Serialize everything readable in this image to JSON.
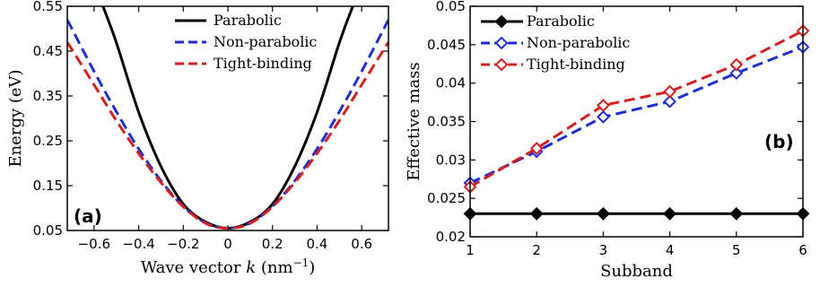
{
  "colors": {
    "parabolic": "#000000",
    "non_parabolic": "#1f2fcf",
    "tight_binding": "#d42020"
  },
  "chart_data": [
    {
      "type": "line",
      "panel_label": "(a)",
      "xlabel": "Wave vector",
      "xlabel_var": "k",
      "xlabel_unit_base": "(nm",
      "xlabel_unit_exp": "−1",
      "xlabel_unit_close": ")",
      "ylabel": "Energy (eV)",
      "xlim": [
        -0.72,
        0.72
      ],
      "ylim": [
        0.05,
        0.55
      ],
      "xticks": [
        -0.6,
        -0.4,
        -0.2,
        0,
        0.2,
        0.4,
        0.6
      ],
      "xtick_labels": [
        "−0.6",
        "−0.4",
        "−0.2",
        "0",
        "0.2",
        "0.4",
        "0.6"
      ],
      "yticks": [
        0.05,
        0.15,
        0.25,
        0.35,
        0.45,
        0.55
      ],
      "ytick_labels": [
        "0.05",
        "0.15",
        "0.25",
        "0.35",
        "0.45",
        "0.55"
      ],
      "legend": [
        "Parabolic",
        "Non-parabolic",
        "Tight-binding"
      ],
      "series": [
        {
          "name": "Parabolic",
          "x": [
            -0.56,
            -0.5,
            -0.4,
            -0.3,
            -0.2,
            -0.1,
            0,
            0.1,
            0.2,
            0.3,
            0.4,
            0.5,
            0.56
          ],
          "y": [
            0.55,
            0.469,
            0.314,
            0.193,
            0.109,
            0.069,
            0.055,
            0.069,
            0.109,
            0.193,
            0.314,
            0.469,
            0.55
          ]
        },
        {
          "name": "Non-parabolic",
          "x": [
            -0.72,
            -0.6,
            -0.5,
            -0.4,
            -0.3,
            -0.2,
            -0.1,
            0,
            0.1,
            0.2,
            0.3,
            0.4,
            0.5,
            0.6,
            0.72
          ],
          "y": [
            0.52,
            0.405,
            0.315,
            0.232,
            0.161,
            0.104,
            0.067,
            0.055,
            0.067,
            0.104,
            0.161,
            0.232,
            0.315,
            0.405,
            0.52
          ]
        },
        {
          "name": "Tight-binding",
          "x": [
            -0.72,
            -0.6,
            -0.5,
            -0.4,
            -0.3,
            -0.2,
            -0.1,
            0,
            0.1,
            0.2,
            0.3,
            0.4,
            0.5,
            0.6,
            0.72
          ],
          "y": [
            0.47,
            0.375,
            0.295,
            0.222,
            0.157,
            0.103,
            0.066,
            0.055,
            0.066,
            0.103,
            0.157,
            0.222,
            0.295,
            0.375,
            0.47
          ]
        }
      ]
    },
    {
      "type": "line",
      "panel_label": "(b)",
      "xlabel": "Subband",
      "ylabel": "Effective mass",
      "xlim": [
        1,
        6
      ],
      "ylim": [
        0.02,
        0.05
      ],
      "categories": [
        "1",
        "2",
        "3",
        "4",
        "5",
        "6"
      ],
      "yticks": [
        0.02,
        0.025,
        0.03,
        0.035,
        0.04,
        0.045,
        0.05
      ],
      "ytick_labels": [
        "0.02",
        "0.025",
        "0.03",
        "0.035",
        "0.04",
        "0.045",
        "0.05"
      ],
      "legend": [
        "Parabolic",
        "Non-parabolic",
        "Tight-binding"
      ],
      "series": [
        {
          "name": "Parabolic",
          "values": [
            0.023,
            0.023,
            0.023,
            0.023,
            0.023,
            0.023
          ]
        },
        {
          "name": "Non-parabolic",
          "values": [
            0.027,
            0.0311,
            0.0356,
            0.0376,
            0.0413,
            0.0447
          ]
        },
        {
          "name": "Tight-binding",
          "values": [
            0.0265,
            0.0315,
            0.0371,
            0.0389,
            0.0424,
            0.0468
          ]
        }
      ]
    }
  ]
}
